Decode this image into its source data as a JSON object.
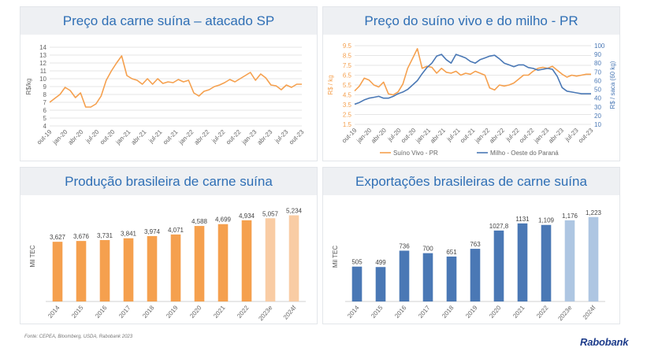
{
  "chart_data": [
    {
      "type": "line",
      "title": "Preço da carne suína – atacado SP",
      "ylabel": "R$/kg",
      "ylim": [
        4,
        14
      ],
      "yticks": [
        4,
        5,
        6,
        7,
        8,
        9,
        10,
        11,
        12,
        13,
        14
      ],
      "xticklabels": [
        "out-19",
        "jan-20",
        "abr-20",
        "jul-20",
        "out-20",
        "jan-21",
        "abr-21",
        "jul-21",
        "out-21",
        "jan-22",
        "abr-22",
        "jul-22",
        "out-22",
        "jan-23",
        "abr-23",
        "jul-23",
        "out-23"
      ],
      "grid": true,
      "series": [
        {
          "name": "Carne suína atacado SP",
          "color": "#f5a04e",
          "values": [
            7.0,
            7.5,
            8.0,
            8.9,
            8.5,
            7.6,
            8.2,
            6.4,
            6.4,
            6.8,
            7.8,
            9.8,
            11.0,
            12.0,
            12.9,
            10.4,
            10.0,
            9.8,
            9.3,
            10.0,
            9.3,
            10.0,
            9.4,
            9.6,
            9.5,
            9.9,
            9.6,
            9.8,
            8.2,
            7.8,
            8.4,
            8.6,
            9.0,
            9.2,
            9.5,
            9.9,
            9.6,
            10.0,
            10.4,
            10.8,
            9.8,
            10.6,
            10.1,
            9.2,
            9.1,
            8.6,
            9.2,
            8.9,
            9.3,
            9.3
          ]
        }
      ]
    },
    {
      "type": "line",
      "title": "Preço do suíno vivo e do milho - PR",
      "ylabel": "R$ / kg",
      "y2label": "R$ / saca (60 kg)",
      "ylim": [
        1.5,
        9.5
      ],
      "yticks": [
        1.5,
        2.5,
        3.5,
        4.5,
        5.5,
        6.5,
        7.5,
        8.5,
        9.5
      ],
      "y2lim": [
        10,
        100
      ],
      "y2ticks": [
        10,
        20,
        30,
        40,
        50,
        60,
        70,
        80,
        90,
        100
      ],
      "xticklabels": [
        "out-19",
        "jan-20",
        "abr-20",
        "jul-20",
        "out-20",
        "jan-21",
        "abr-21",
        "jul-21",
        "out-21",
        "jan-22",
        "abr-22",
        "jul-22",
        "out-22",
        "jan-23",
        "abr-23",
        "jul-23",
        "out-23"
      ],
      "grid": true,
      "legend": "bottom",
      "series": [
        {
          "name": "Suíno Vivo - PR",
          "axis": "left",
          "color": "#f5a04e",
          "values": [
            4.9,
            5.4,
            6.2,
            6.0,
            5.5,
            5.3,
            5.8,
            4.6,
            4.5,
            4.8,
            5.6,
            7.2,
            8.2,
            9.2,
            7.2,
            7.4,
            7.3,
            6.7,
            7.2,
            6.8,
            6.7,
            6.9,
            6.5,
            6.7,
            6.6,
            6.9,
            6.7,
            6.5,
            5.2,
            5.0,
            5.5,
            5.4,
            5.5,
            5.7,
            6.1,
            6.5,
            6.5,
            6.9,
            7.2,
            7.3,
            7.2,
            7.4,
            7.0,
            6.6,
            6.3,
            6.5,
            6.4,
            6.5,
            6.6,
            6.6
          ]
        },
        {
          "name": "Milho - Oeste do Paraná",
          "axis": "right",
          "color": "#4a78b5",
          "values": [
            33,
            35,
            38,
            40,
            41,
            42,
            40,
            40,
            42,
            45,
            47,
            50,
            55,
            60,
            68,
            75,
            80,
            88,
            90,
            84,
            80,
            90,
            88,
            86,
            82,
            80,
            84,
            86,
            88,
            89,
            85,
            80,
            78,
            76,
            78,
            78,
            75,
            74,
            72,
            73,
            74,
            73,
            65,
            52,
            48,
            47,
            46,
            45,
            45,
            45
          ]
        }
      ]
    },
    {
      "type": "bar",
      "title": "Produção brasileira de carne suína",
      "ylabel": "Mil TEC",
      "categories": [
        "2014",
        "2015",
        "2016",
        "2017",
        "2018",
        "2019",
        "2020",
        "2021",
        "2022",
        "2023e",
        "2024f"
      ],
      "values": [
        3627,
        3676,
        3731,
        3841,
        3974,
        4071,
        4588,
        4699,
        4934,
        5057,
        5234
      ],
      "labels": [
        "3,627",
        "3,676",
        "3,731",
        "3,841",
        "3,974",
        "4,071",
        "4,588",
        "4,699",
        "4,934",
        "5,057",
        "5,234"
      ],
      "colors": [
        "#f5a04e",
        "#f5a04e",
        "#f5a04e",
        "#f5a04e",
        "#f5a04e",
        "#f5a04e",
        "#f5a04e",
        "#f5a04e",
        "#f5a04e",
        "#f9cca4",
        "#f9cca4"
      ],
      "ylim": [
        0,
        5500
      ]
    },
    {
      "type": "bar",
      "title": "Exportações brasileiras de carne suína",
      "ylabel": "Mil TEC",
      "categories": [
        "2014",
        "2015",
        "2016",
        "2017",
        "2018",
        "2019",
        "2020",
        "2021",
        "2022",
        "2023e",
        "2024f"
      ],
      "values": [
        505,
        499,
        736,
        700,
        651,
        763,
        1027.8,
        1131,
        1109,
        1176,
        1223
      ],
      "labels": [
        "505",
        "499",
        "736",
        "700",
        "651",
        "763",
        "1027,8",
        "1131",
        "1,109",
        "1,176",
        "1,223"
      ],
      "colors": [
        "#4a78b5",
        "#4a78b5",
        "#4a78b5",
        "#4a78b5",
        "#4a78b5",
        "#4a78b5",
        "#4a78b5",
        "#4a78b5",
        "#4a78b5",
        "#aec6e2",
        "#aec6e2"
      ],
      "ylim": [
        0,
        1300
      ]
    }
  ],
  "footer": {
    "source": "Fonte: CEPEA, Bloomberg, USDA, Rabobank 2023",
    "logo": "Rabobank"
  }
}
